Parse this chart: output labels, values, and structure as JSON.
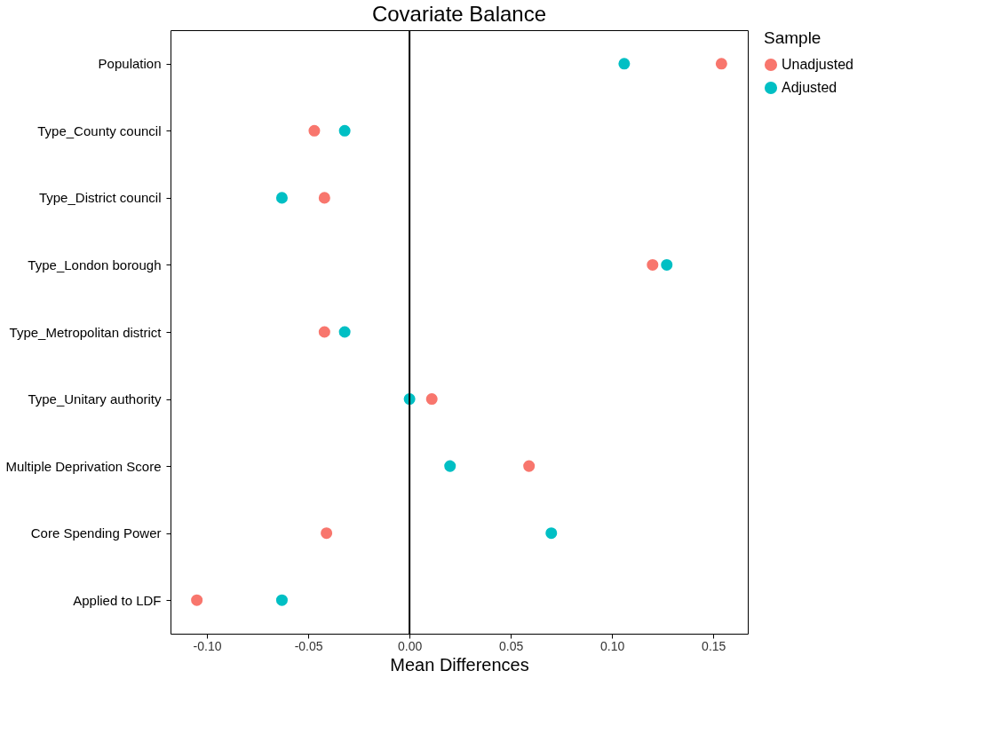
{
  "chart_data": {
    "type": "scatter",
    "title": "Covariate Balance",
    "xlabel": "Mean Differences",
    "legend_title": "Sample",
    "orientation": "horizontal",
    "categories": [
      "Population",
      "Type_County council",
      "Type_District council",
      "Type_London borough",
      "Type_Metropolitan district",
      "Type_Unitary authority",
      "Multiple Deprivation Score",
      "Core Spending Power",
      "Applied to LDF"
    ],
    "series": [
      {
        "name": "Unadjusted",
        "color": "#f8766d",
        "values": [
          0.154,
          -0.047,
          -0.042,
          0.12,
          -0.042,
          0.011,
          0.059,
          -0.041,
          -0.105
        ]
      },
      {
        "name": "Adjusted",
        "color": "#00bfc4",
        "values": [
          0.106,
          -0.032,
          -0.063,
          0.127,
          -0.032,
          0.0,
          0.02,
          0.07,
          -0.063
        ]
      }
    ],
    "xlim": [
      -0.118,
      0.167
    ],
    "xticks": [
      {
        "value": -0.1,
        "label": "-0.10"
      },
      {
        "value": -0.05,
        "label": "-0.05"
      },
      {
        "value": 0,
        "label": "0.00"
      },
      {
        "value": 0.05,
        "label": "0.05"
      },
      {
        "value": 0.1,
        "label": "0.10"
      },
      {
        "value": 0.15,
        "label": "0.15"
      }
    ],
    "ref_lines": [
      {
        "axis": "x",
        "value": 0,
        "color": "#000000"
      }
    ],
    "marker": "circle",
    "grid": false,
    "legend": "right"
  }
}
